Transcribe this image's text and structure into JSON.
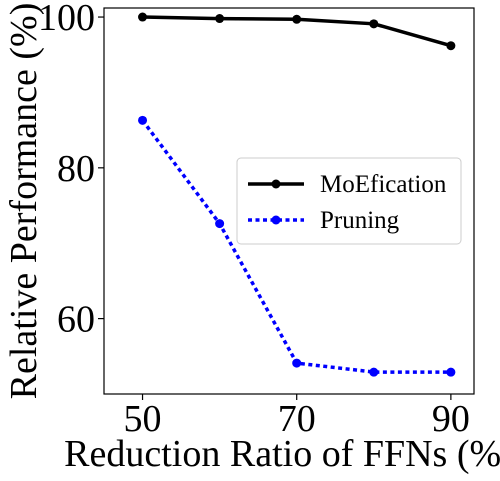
{
  "chart_data": {
    "type": "line",
    "title": "",
    "xlabel": "Reduction Ratio of FFNs (%)",
    "ylabel": "Relative Performance (%)",
    "x": [
      50,
      60,
      70,
      80,
      90
    ],
    "xticks": [
      "50",
      "70",
      "90"
    ],
    "yticks": [
      "60",
      "80",
      "100"
    ],
    "xlim": [
      45,
      93
    ],
    "ylim": [
      50,
      101.2
    ],
    "grid": false,
    "legend_position": "center-right",
    "series": [
      {
        "name": "MoEfication",
        "values": [
          100.0,
          99.8,
          99.7,
          99.1,
          96.2
        ],
        "color": "#000000",
        "style": "solid",
        "marker": "circle"
      },
      {
        "name": "Pruning",
        "values": [
          86.3,
          72.6,
          54.1,
          52.9,
          52.9
        ],
        "color": "#0000ff",
        "style": "dotted",
        "marker": "circle"
      }
    ]
  }
}
